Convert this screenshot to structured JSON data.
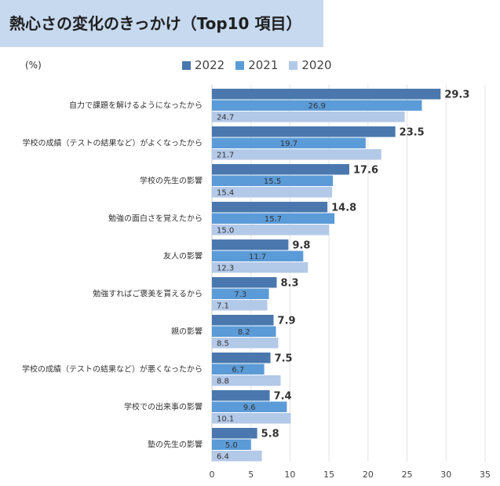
{
  "title": "熱心さの変化のきっかけ（Top10 項目）",
  "unit_label": "(%)",
  "colors": {
    "title_bg": "#c7d9ef",
    "series": [
      "#4a78ae",
      "#5b9bd8",
      "#b3c9e8"
    ]
  },
  "chart_data": {
    "type": "bar",
    "orientation": "horizontal",
    "categories": [
      "自力で課題を解けるようになったから",
      "学校の成績（テストの結果など）がよくなったから",
      "学校の先生の影響",
      "勉強の面白さを覚えたから",
      "友人の影響",
      "勉強すればご褒美を貰えるから",
      "親の影響",
      "学校の成績（テストの結果など）が悪くなったから",
      "学校での出来事の影響",
      "塾の先生の影響"
    ],
    "series": [
      {
        "name": "2022",
        "values": [
          29.3,
          23.5,
          17.6,
          14.8,
          9.8,
          8.3,
          7.9,
          7.5,
          7.4,
          5.8
        ]
      },
      {
        "name": "2021",
        "values": [
          26.9,
          19.7,
          15.5,
          15.7,
          11.7,
          7.3,
          8.2,
          6.7,
          9.6,
          5.0
        ]
      },
      {
        "name": "2020",
        "values": [
          24.7,
          21.7,
          15.4,
          15.0,
          12.3,
          7.1,
          8.5,
          8.8,
          10.1,
          6.4
        ]
      }
    ],
    "xlim": [
      0,
      35
    ],
    "xticks": [
      0,
      5,
      10,
      15,
      20,
      25,
      30,
      35
    ],
    "grid": true,
    "legend_position": "top"
  }
}
